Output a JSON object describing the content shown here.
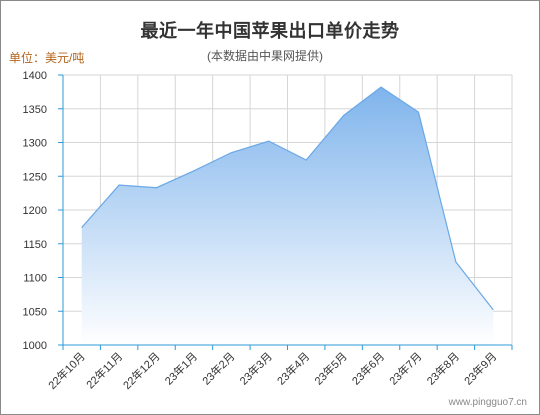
{
  "header": {
    "title": "最近一年中国苹果出口单价走势",
    "subtitle": "(本数据由中果网提供)",
    "unit_label": "单位：美元/吨"
  },
  "footer": {
    "watermark": "www.pingguo7.cn"
  },
  "colors": {
    "area_top": "#7fb4ec",
    "area_bottom": "#ffffff",
    "line": "#6aa8e6",
    "axis": "#2c9ad8",
    "grid": "#d6d6d6",
    "unit_text": "#b5651d"
  },
  "chart_data": {
    "type": "area",
    "title": "最近一年中国苹果出口单价走势",
    "subtitle": "(本数据由中果网提供)",
    "ylabel": "单位：美元/吨",
    "xlabel": "",
    "categories": [
      "22年10月",
      "22年11月",
      "22年12月",
      "23年1月",
      "23年2月",
      "23年3月",
      "23年4月",
      "23年5月",
      "23年6月",
      "23年7月",
      "23年8月",
      "23年9月"
    ],
    "series": [
      {
        "values": [
          1174,
          1237,
          1233,
          1258,
          1285,
          1302,
          1274,
          1340,
          1382,
          1345,
          1123,
          1052
        ]
      }
    ],
    "ylim": [
      1000,
      1400
    ],
    "yticks": [
      1000,
      1050,
      1100,
      1150,
      1200,
      1250,
      1300,
      1350,
      1400
    ],
    "grid": true,
    "legend": "none"
  }
}
